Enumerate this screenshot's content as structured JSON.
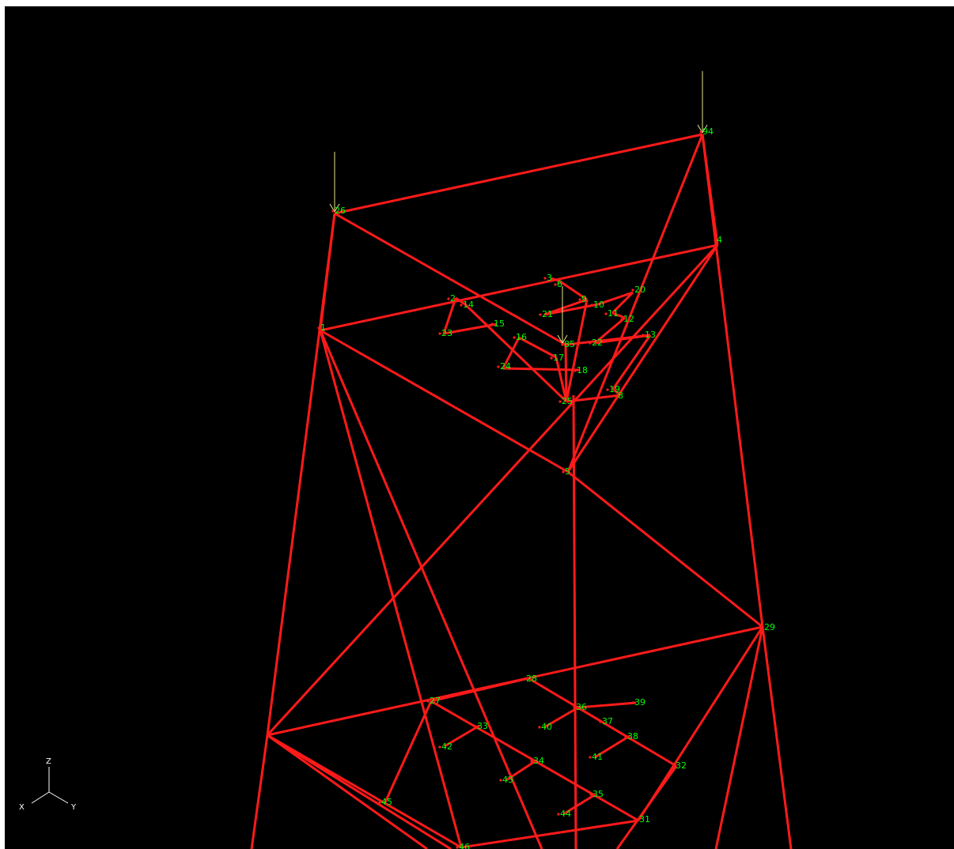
{
  "colors": {
    "background": "#000000",
    "member": "#ff1a1a",
    "node_label": "#00ff00",
    "node_marker": "#ff1a1a",
    "load_arrow": "#e6e68c",
    "axis": "#ffffff"
  },
  "axis_triad": {
    "labels": {
      "z": "Z",
      "x": "X",
      "y": "Y"
    }
  },
  "nodes": [
    {
      "id": "1"
    },
    {
      "id": "2"
    },
    {
      "id": "3"
    },
    {
      "id": "4"
    },
    {
      "id": "5"
    },
    {
      "id": "6"
    },
    {
      "id": "8"
    },
    {
      "id": "9"
    },
    {
      "id": "10"
    },
    {
      "id": "11"
    },
    {
      "id": "12"
    },
    {
      "id": "13"
    },
    {
      "id": "14"
    },
    {
      "id": "15"
    },
    {
      "id": "16"
    },
    {
      "id": "17"
    },
    {
      "id": "18"
    },
    {
      "id": "19"
    },
    {
      "id": "20"
    },
    {
      "id": "21"
    },
    {
      "id": "22"
    },
    {
      "id": "23"
    },
    {
      "id": "24"
    },
    {
      "id": "25"
    },
    {
      "id": "26"
    },
    {
      "id": "27"
    },
    {
      "id": "28"
    },
    {
      "id": "29"
    },
    {
      "id": "31"
    },
    {
      "id": "32"
    },
    {
      "id": "33"
    },
    {
      "id": "34"
    },
    {
      "id": "35"
    },
    {
      "id": "36"
    },
    {
      "id": "37"
    },
    {
      "id": "38"
    },
    {
      "id": "39"
    },
    {
      "id": "40"
    },
    {
      "id": "41"
    },
    {
      "id": "42"
    },
    {
      "id": "43"
    },
    {
      "id": "44"
    },
    {
      "id": "45"
    },
    {
      "id": "46"
    },
    {
      "id": "85"
    },
    {
      "id": "94"
    }
  ]
}
